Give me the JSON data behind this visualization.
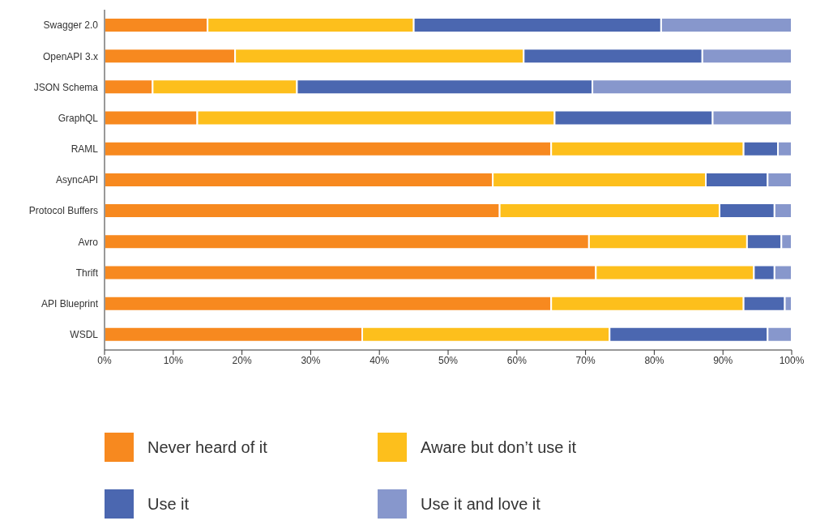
{
  "chart_data": {
    "type": "bar",
    "orientation": "horizontal",
    "stacked": true,
    "categories": [
      "Swagger 2.0",
      "OpenAPI 3.x",
      "JSON Schema",
      "GraphQL",
      "RAML",
      "AsyncAPI",
      "Protocol Buffers",
      "Avro",
      "Thrift",
      "API Blueprint",
      "WSDL"
    ],
    "series": [
      {
        "name": "Never heard of it",
        "color": "#f7891f",
        "values": [
          15,
          19,
          7,
          13.5,
          65,
          56.5,
          57.5,
          70.5,
          71.5,
          65,
          37.5
        ]
      },
      {
        "name": "Aware but don’t use it",
        "color": "#fdbf1c",
        "values": [
          30,
          42,
          21,
          52,
          28,
          31,
          32,
          23,
          23,
          28,
          36
        ]
      },
      {
        "name": "Use it",
        "color": "#4b67b0",
        "values": [
          36,
          26,
          43,
          23,
          5,
          9,
          8,
          5,
          3,
          6,
          23
        ]
      },
      {
        "name": "Use it and love it",
        "color": "#8797cc",
        "values": [
          19,
          13,
          29,
          11.5,
          2,
          3.5,
          2.5,
          1.5,
          2.5,
          1,
          3.5
        ]
      }
    ],
    "xlim": [
      0,
      100
    ],
    "xticks": [
      {
        "value": 0,
        "label": "0%"
      },
      {
        "value": 10,
        "label": "10%"
      },
      {
        "value": 20,
        "label": "20%"
      },
      {
        "value": 30,
        "label": "30%"
      },
      {
        "value": 40,
        "label": "40%"
      },
      {
        "value": 50,
        "label": "50%"
      },
      {
        "value": 60,
        "label": "60%"
      },
      {
        "value": 70,
        "label": "70%"
      },
      {
        "value": 80,
        "label": "80%"
      },
      {
        "value": 90,
        "label": "90%"
      },
      {
        "value": 100,
        "label": "100%"
      }
    ],
    "grid": false,
    "legend": "bottom"
  }
}
